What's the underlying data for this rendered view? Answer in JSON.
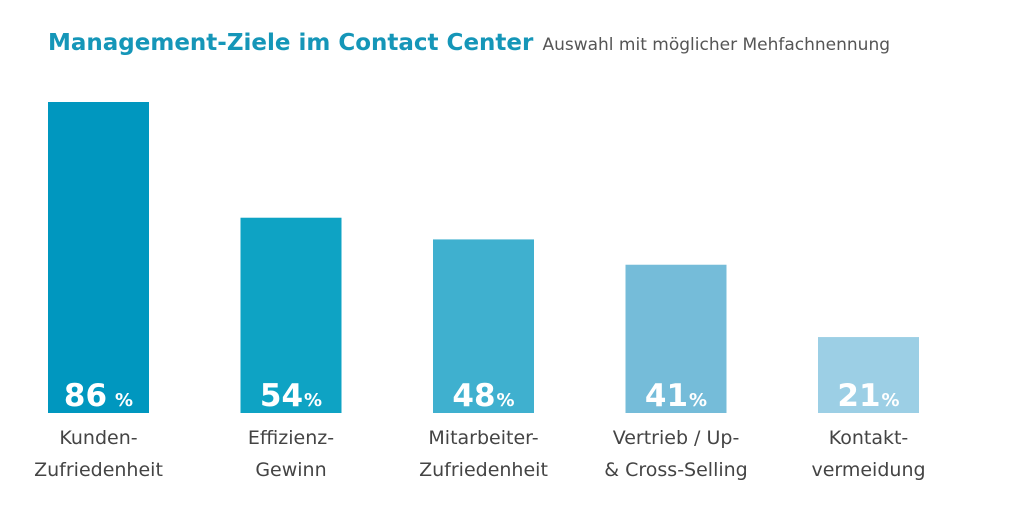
{
  "title": "Management-Ziele im Contact Center",
  "subtitle": "Auswahl mit möglicher Mehfachnennung",
  "chart_data": {
    "type": "bar",
    "categories": [
      [
        "Kunden-",
        "Zufriedenheit"
      ],
      [
        "Effizienz-",
        "Gewinn"
      ],
      [
        "Mitarbeiter-",
        "Zufriedenheit"
      ],
      [
        "Vertrieb / Up-",
        "& Cross-Selling"
      ],
      [
        "Kontakt-",
        "vermeidung"
      ]
    ],
    "values": [
      86,
      54,
      48,
      41,
      21
    ],
    "value_labels": [
      "86",
      "54",
      "48",
      "41",
      "21"
    ],
    "unit": "%",
    "colors": [
      "#0097bf",
      "#0ea3c4",
      "#3fb0cf",
      "#75bcd9",
      "#9ccfe5"
    ],
    "ylim": [
      0,
      86
    ],
    "grid": false
  }
}
